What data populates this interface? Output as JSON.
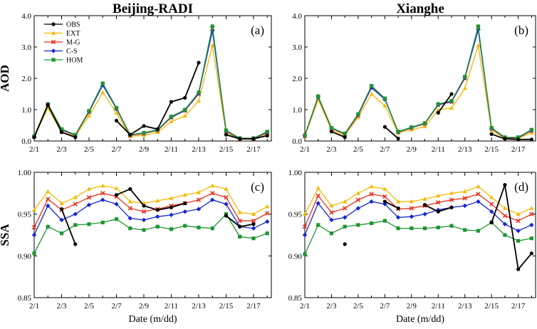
{
  "figure": {
    "titles": [
      "Beijing-RADI",
      "Xianghe"
    ],
    "row_labels": [
      "AOD",
      "SSA"
    ],
    "xlabel": "Date (m/dd)"
  },
  "legend": [
    "OBS",
    "EXT",
    "M-G",
    "C-S",
    "HOM"
  ],
  "series_colors": {
    "OBS": "#000000",
    "EXT": "#F5B800",
    "M-G": "#E8321E",
    "C-S": "#1428D2",
    "HOM": "#1E9632"
  },
  "chart_data": [
    {
      "type": "line",
      "title": "Beijing-RADI",
      "panel_label": "(a)",
      "ylabel": "AOD",
      "xlabel": "",
      "x_ticklabels": [
        "2/1",
        "2/3",
        "2/5",
        "2/7",
        "2/9",
        "2/11",
        "2/13",
        "2/15",
        "2/17"
      ],
      "yticks": [
        "0.0",
        "1.0",
        "2.0",
        "3.0",
        "4.0"
      ],
      "ylim": [
        0,
        4
      ],
      "x": [
        1,
        2,
        3,
        4,
        5,
        6,
        7,
        8,
        9,
        10,
        11,
        12,
        13,
        14,
        15,
        16,
        17,
        18
      ],
      "series": [
        {
          "name": "OBS",
          "values": [
            0.12,
            1.15,
            0.28,
            0.12,
            null,
            null,
            0.65,
            0.2,
            0.48,
            0.38,
            1.25,
            1.38,
            2.5,
            null,
            0.2,
            0.07,
            0.07,
            0.17
          ]
        },
        {
          "name": "EXT",
          "values": [
            0.12,
            1.05,
            0.28,
            0.16,
            0.8,
            1.55,
            0.9,
            0.15,
            0.18,
            0.28,
            0.62,
            0.8,
            1.28,
            3.05,
            0.26,
            0.07,
            0.07,
            0.22
          ]
        },
        {
          "name": "M-G",
          "values": [
            0.14,
            1.15,
            0.35,
            0.18,
            0.92,
            1.8,
            1.03,
            0.18,
            0.24,
            0.34,
            0.75,
            0.97,
            1.5,
            3.6,
            0.31,
            0.08,
            0.08,
            0.27
          ]
        },
        {
          "name": "C-S",
          "values": [
            0.14,
            1.16,
            0.36,
            0.19,
            0.94,
            1.78,
            1.04,
            0.19,
            0.25,
            0.35,
            0.76,
            0.98,
            1.52,
            3.52,
            0.32,
            0.08,
            0.08,
            0.28
          ]
        },
        {
          "name": "HOM",
          "values": [
            0.15,
            1.18,
            0.38,
            0.2,
            0.96,
            1.84,
            1.06,
            0.2,
            0.26,
            0.36,
            0.78,
            1.0,
            1.55,
            3.66,
            0.34,
            0.09,
            0.09,
            0.3
          ]
        }
      ]
    },
    {
      "type": "line",
      "title": "Xianghe",
      "panel_label": "(b)",
      "ylabel": "",
      "xlabel": "",
      "x_ticklabels": [
        "2/1",
        "2/3",
        "2/5",
        "2/7",
        "2/9",
        "2/11",
        "2/13",
        "2/15",
        "2/17"
      ],
      "yticks": [
        "0.0",
        "1.0",
        "2.0",
        "3.0",
        "4.0"
      ],
      "ylim": [
        0,
        4
      ],
      "x": [
        1,
        2,
        3,
        4,
        5,
        6,
        7,
        8,
        9,
        10,
        11,
        12,
        13,
        14,
        15,
        16,
        17,
        18
      ],
      "series": [
        {
          "name": "OBS",
          "values": [
            null,
            null,
            0.3,
            0.12,
            null,
            null,
            0.45,
            0.08,
            null,
            null,
            0.9,
            1.5,
            null,
            null,
            0.22,
            0.07,
            0.05,
            0.05
          ]
        },
        {
          "name": "EXT",
          "values": [
            0.14,
            1.32,
            0.35,
            0.18,
            0.75,
            1.5,
            1.12,
            0.26,
            0.36,
            0.46,
            1.0,
            1.05,
            1.68,
            3.05,
            0.34,
            0.09,
            0.09,
            0.26
          ]
        },
        {
          "name": "M-G",
          "values": [
            0.16,
            1.4,
            0.4,
            0.22,
            0.82,
            1.72,
            1.35,
            0.28,
            0.42,
            0.55,
            1.15,
            1.25,
            2.0,
            3.62,
            0.4,
            0.1,
            0.1,
            0.33
          ]
        },
        {
          "name": "C-S",
          "values": [
            0.17,
            1.41,
            0.41,
            0.23,
            0.84,
            1.7,
            1.33,
            0.29,
            0.43,
            0.56,
            1.16,
            1.26,
            2.02,
            3.55,
            0.4,
            0.11,
            0.11,
            0.34
          ]
        },
        {
          "name": "HOM",
          "values": [
            0.18,
            1.43,
            0.42,
            0.24,
            0.86,
            1.76,
            1.36,
            0.3,
            0.44,
            0.57,
            1.18,
            1.28,
            2.05,
            3.66,
            0.42,
            0.12,
            0.12,
            0.36
          ]
        }
      ]
    },
    {
      "type": "line",
      "title": "",
      "panel_label": "(c)",
      "ylabel": "SSA",
      "xlabel": "Date (m/dd)",
      "x_ticklabels": [
        "2/1",
        "2/3",
        "2/5",
        "2/7",
        "2/9",
        "2/11",
        "2/13",
        "2/15",
        "2/17"
      ],
      "yticks": [
        "0.85",
        "0.90",
        "0.95",
        "1.00"
      ],
      "ylim": [
        0.85,
        1.0
      ],
      "x": [
        1,
        2,
        3,
        4,
        5,
        6,
        7,
        8,
        9,
        10,
        11,
        12,
        13,
        14,
        15,
        16,
        17,
        18
      ],
      "series": [
        {
          "name": "OBS",
          "values": [
            null,
            null,
            0.956,
            0.914,
            null,
            null,
            0.973,
            0.98,
            0.96,
            0.955,
            0.958,
            0.963,
            null,
            null,
            0.948,
            0.935,
            0.938,
            null
          ]
        },
        {
          "name": "EXT",
          "values": [
            0.955,
            0.977,
            0.963,
            0.97,
            0.98,
            0.984,
            0.981,
            0.965,
            0.963,
            0.966,
            0.969,
            0.973,
            0.976,
            0.984,
            0.98,
            0.952,
            0.95,
            0.959
          ]
        },
        {
          "name": "M-G",
          "values": [
            0.934,
            0.968,
            0.955,
            0.962,
            0.97,
            0.975,
            0.971,
            0.957,
            0.953,
            0.956,
            0.96,
            0.963,
            0.967,
            0.975,
            0.97,
            0.942,
            0.942,
            0.951
          ]
        },
        {
          "name": "C-S",
          "values": [
            0.925,
            0.96,
            0.943,
            0.95,
            0.961,
            0.967,
            0.962,
            0.945,
            0.943,
            0.947,
            0.949,
            0.953,
            0.956,
            0.967,
            0.962,
            0.935,
            0.933,
            0.941
          ]
        },
        {
          "name": "HOM",
          "values": [
            0.903,
            0.935,
            0.927,
            0.937,
            0.938,
            0.94,
            0.944,
            0.933,
            0.931,
            0.935,
            0.932,
            0.936,
            0.934,
            0.933,
            0.95,
            0.923,
            0.921,
            0.927
          ]
        }
      ]
    },
    {
      "type": "line",
      "title": "",
      "panel_label": "(d)",
      "ylabel": "",
      "xlabel": "Date (m/dd)",
      "x_ticklabels": [
        "2/1",
        "2/3",
        "2/5",
        "2/7",
        "2/9",
        "2/11",
        "2/13",
        "2/15",
        "2/17"
      ],
      "yticks": [
        "0.85",
        "0.90",
        "0.95",
        "1.00"
      ],
      "ylim": [
        0.85,
        1.0
      ],
      "x": [
        1,
        2,
        3,
        4,
        5,
        6,
        7,
        8,
        9,
        10,
        11,
        12,
        13,
        14,
        15,
        16,
        17,
        18
      ],
      "series": [
        {
          "name": "OBS",
          "values": [
            null,
            null,
            null,
            0.914,
            null,
            null,
            0.965,
            0.957,
            null,
            0.961,
            0.953,
            0.958,
            null,
            null,
            0.94,
            0.985,
            0.884,
            0.903
          ]
        },
        {
          "name": "EXT",
          "values": [
            0.95,
            0.981,
            0.96,
            0.965,
            0.975,
            0.983,
            0.98,
            0.965,
            0.965,
            0.968,
            0.972,
            0.975,
            0.977,
            0.983,
            0.97,
            0.957,
            0.95,
            0.957
          ]
        },
        {
          "name": "M-G",
          "values": [
            0.935,
            0.972,
            0.952,
            0.957,
            0.967,
            0.974,
            0.971,
            0.956,
            0.957,
            0.96,
            0.964,
            0.967,
            0.969,
            0.974,
            0.962,
            0.948,
            0.942,
            0.95
          ]
        },
        {
          "name": "C-S",
          "values": [
            0.925,
            0.963,
            0.943,
            0.946,
            0.957,
            0.965,
            0.962,
            0.946,
            0.947,
            0.95,
            0.955,
            0.958,
            0.96,
            0.965,
            0.953,
            0.938,
            0.93,
            0.937
          ]
        },
        {
          "name": "HOM",
          "values": [
            0.902,
            0.937,
            0.927,
            0.935,
            0.937,
            0.939,
            0.942,
            0.933,
            0.933,
            0.933,
            0.934,
            0.936,
            0.931,
            0.93,
            0.94,
            0.925,
            0.918,
            0.921
          ]
        }
      ]
    }
  ]
}
